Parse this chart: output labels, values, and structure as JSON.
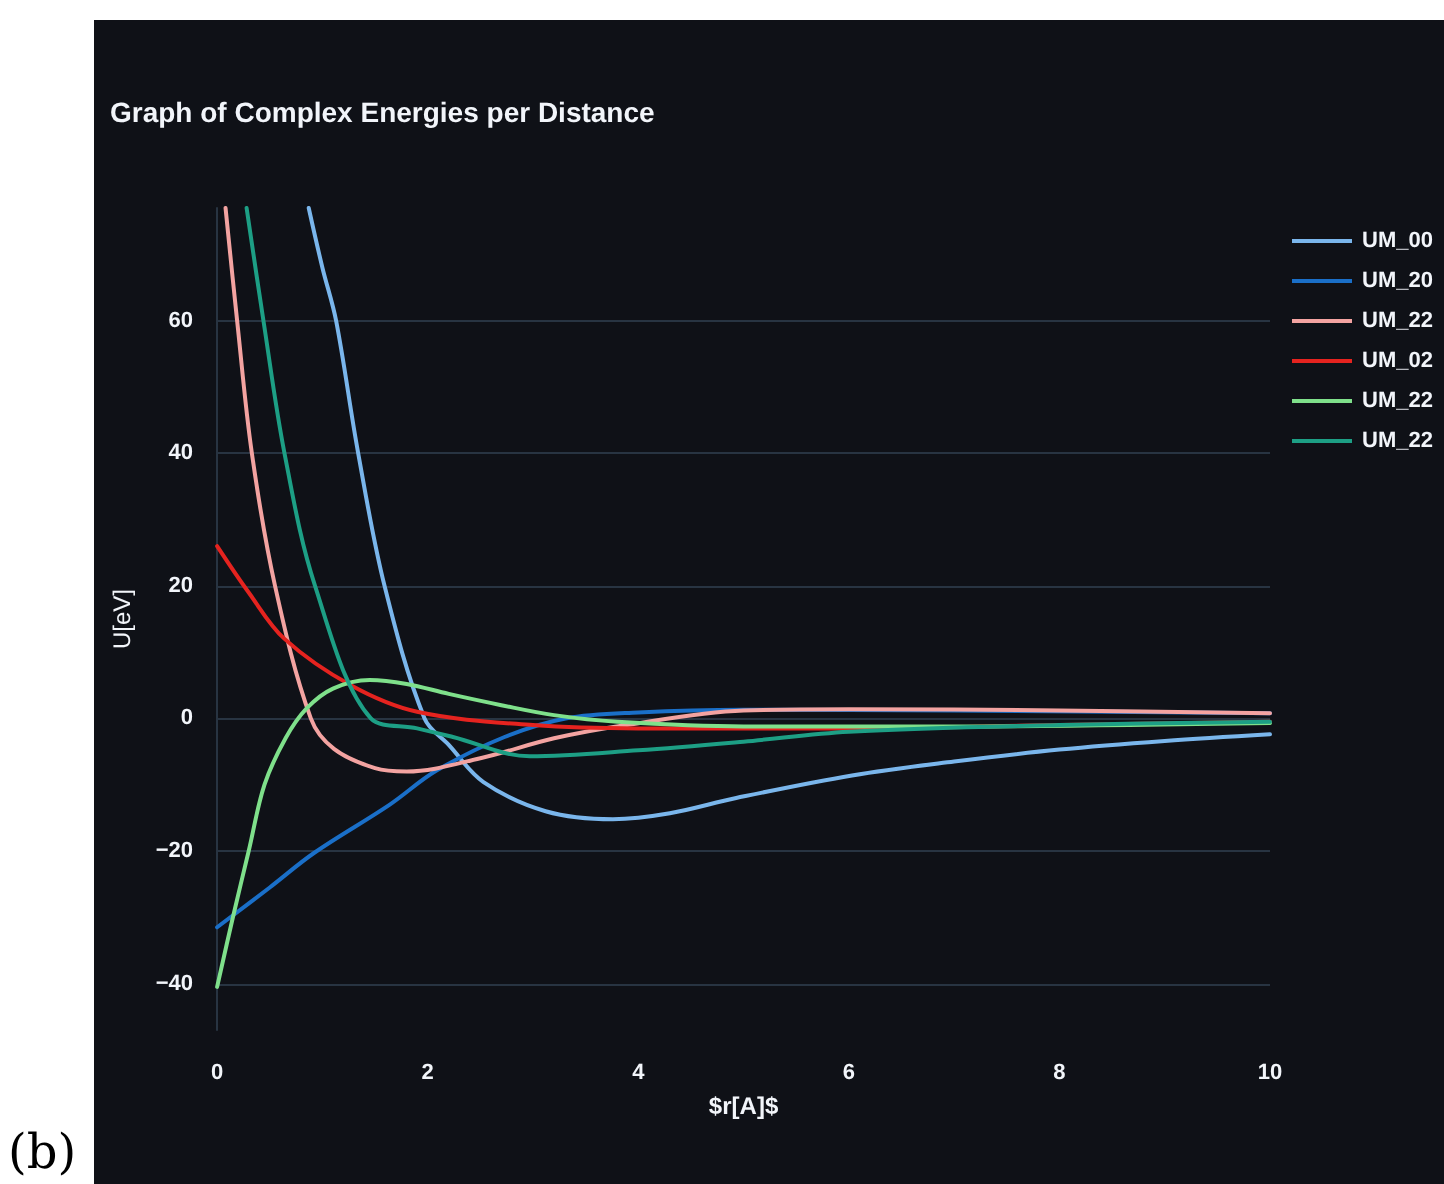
{
  "chart_data": {
    "type": "line",
    "title": "Graph of Complex Energies per Distance",
    "xlabel": "$r[A]$",
    "ylabel": "U[eV]",
    "annotations": [
      "(b)"
    ],
    "xlim": [
      0,
      10
    ],
    "xticks": [
      0,
      2,
      4,
      6,
      8,
      10
    ],
    "ylim": [
      -47,
      77
    ],
    "yticks": [
      -40,
      -20,
      0,
      20,
      40,
      60
    ],
    "grid": "y",
    "legend": "right",
    "marker": "none",
    "line_style": "solid",
    "series": [
      {
        "name": "UM_00",
        "color": "#7ab6ec",
        "x": [
          0.87,
          1.0,
          1.13,
          1.34,
          1.59,
          1.97,
          2.2,
          2.53,
          3.12,
          3.76,
          4.3,
          4.93,
          6.03,
          7,
          8,
          9,
          10
        ],
        "values": [
          77,
          68,
          60,
          40,
          20,
          0,
          -4,
          -9.6,
          -14,
          -15.2,
          -14.3,
          -12,
          -8.6,
          -6.5,
          -4.7,
          -3.4,
          -2.4
        ]
      },
      {
        "name": "UM_20",
        "color": "#1a6fc8",
        "x": [
          0,
          0.5,
          0.92,
          1.64,
          2.08,
          2.73,
          3.31,
          4,
          5,
          7,
          10
        ],
        "values": [
          -31.5,
          -25.5,
          -20.3,
          -13,
          -7.9,
          -2.8,
          0,
          0.9,
          1.3,
          1.2,
          0.8
        ]
      },
      {
        "name": "UM_22",
        "color": "#f3a3a1",
        "x": [
          0.08,
          0.19,
          0.33,
          0.55,
          0.89,
          1.11,
          1.5,
          1.8,
          2.5,
          3.2,
          3.84,
          5,
          6,
          8,
          10
        ],
        "values": [
          77,
          60,
          40,
          20,
          0,
          -4.6,
          -7.5,
          -8,
          -6,
          -3,
          -1.1,
          1.2,
          1.4,
          1.2,
          0.8
        ]
      },
      {
        "name": "UM_02",
        "color": "#e5231f",
        "x": [
          0,
          0.3,
          0.64,
          1.27,
          1.9,
          3,
          4,
          6,
          8,
          10
        ],
        "values": [
          26,
          19,
          12,
          5,
          1,
          -1,
          -1.5,
          -1.5,
          -1,
          -0.5
        ]
      },
      {
        "name": "UM_22",
        "color": "#7fe08b",
        "x": [
          0,
          0.15,
          0.3,
          0.45,
          0.65,
          0.85,
          1.1,
          1.45,
          1.8,
          2.2,
          2.7,
          3.2,
          3.8,
          5,
          7,
          10
        ],
        "values": [
          -40.5,
          -30,
          -20,
          -10,
          -3,
          1.5,
          4.5,
          5.8,
          5.2,
          3.7,
          2,
          0.5,
          -0.5,
          -1.2,
          -1.2,
          -0.7
        ]
      },
      {
        "name": "UM_22",
        "color": "#1d9f85",
        "x": [
          0.28,
          0.44,
          0.64,
          0.93,
          1.46,
          1.9,
          2.24,
          2.97,
          4,
          5,
          6,
          8,
          10
        ],
        "values": [
          77,
          60,
          40,
          20,
          0,
          -1.5,
          -2.8,
          -5.7,
          -4.8,
          -3.5,
          -2,
          -1,
          -0.5
        ]
      }
    ]
  }
}
